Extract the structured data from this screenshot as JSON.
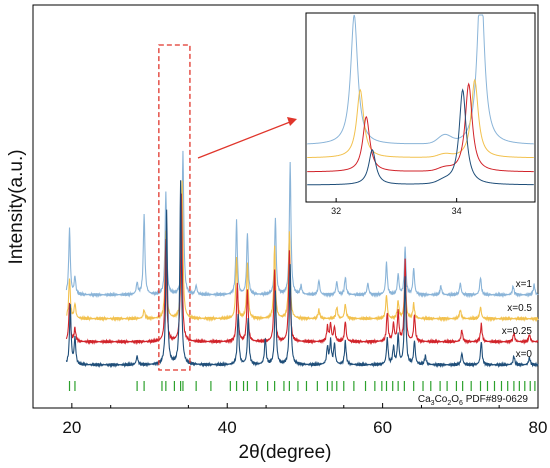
{
  "chart_data": {
    "type": "line",
    "xlabel": "2θ(degree)",
    "ylabel": "Intensity(a.u.)",
    "xlim": [
      15,
      80
    ],
    "xticks": [
      20,
      40,
      60,
      80
    ],
    "y_axis_ticks": "none",
    "grid": false,
    "legend": "inline labels at right end of each trace",
    "series": [
      {
        "name": "x=1",
        "color": "#8ab4d8",
        "baseline": 1.0,
        "peaks": [
          [
            19.7,
            0.45
          ],
          [
            20.4,
            0.12
          ],
          [
            28.4,
            0.08
          ],
          [
            29.3,
            0.55
          ],
          [
            32.1,
            0.7
          ],
          [
            34.3,
            0.98
          ],
          [
            36.0,
            0.06
          ],
          [
            41.2,
            0.5
          ],
          [
            42.6,
            0.42
          ],
          [
            46.2,
            0.52
          ],
          [
            48.1,
            0.9
          ],
          [
            49.5,
            0.06
          ],
          [
            51.8,
            0.1
          ],
          [
            54.1,
            0.09
          ],
          [
            55.2,
            0.12
          ],
          [
            58.1,
            0.08
          ],
          [
            60.5,
            0.22
          ],
          [
            62.0,
            0.14
          ],
          [
            62.9,
            0.32
          ],
          [
            64.0,
            0.18
          ],
          [
            67.5,
            0.06
          ],
          [
            70.0,
            0.08
          ],
          [
            72.6,
            0.12
          ],
          [
            76.8,
            0.06
          ],
          [
            79.5,
            0.07
          ]
        ]
      },
      {
        "name": "x=0.5",
        "color": "#f2c14e",
        "baseline": 0.66,
        "peaks": [
          [
            19.7,
            0.28
          ],
          [
            20.4,
            0.1
          ],
          [
            29.3,
            0.06
          ],
          [
            32.1,
            0.6
          ],
          [
            34.2,
            0.93
          ],
          [
            41.2,
            0.42
          ],
          [
            42.6,
            0.38
          ],
          [
            46.1,
            0.5
          ],
          [
            48.0,
            0.6
          ],
          [
            51.8,
            0.06
          ],
          [
            54.1,
            0.08
          ],
          [
            55.2,
            0.1
          ],
          [
            60.5,
            0.16
          ],
          [
            62.0,
            0.12
          ],
          [
            62.9,
            0.3
          ],
          [
            64.0,
            0.1
          ],
          [
            70.0,
            0.06
          ],
          [
            72.6,
            0.08
          ]
        ]
      },
      {
        "name": "x=0.25",
        "color": "#d1232a",
        "baseline": 0.33,
        "peaks": [
          [
            19.7,
            0.26
          ],
          [
            20.4,
            0.09
          ],
          [
            32.1,
            0.7
          ],
          [
            34.1,
            1.0
          ],
          [
            41.3,
            0.4
          ],
          [
            42.6,
            0.35
          ],
          [
            46.1,
            0.48
          ],
          [
            48.0,
            0.62
          ],
          [
            52.9,
            0.1
          ],
          [
            53.3,
            0.12
          ],
          [
            53.8,
            0.1
          ],
          [
            55.2,
            0.14
          ],
          [
            60.6,
            0.2
          ],
          [
            61.4,
            0.12
          ],
          [
            62.0,
            0.2
          ],
          [
            62.9,
            0.55
          ],
          [
            64.1,
            0.18
          ],
          [
            70.2,
            0.08
          ],
          [
            72.7,
            0.12
          ],
          [
            76.9,
            0.06
          ],
          [
            78.9,
            0.05
          ]
        ]
      },
      {
        "name": "x=0",
        "color": "#1f4e79",
        "baseline": 0.0,
        "peaks": [
          [
            19.8,
            0.4
          ],
          [
            20.4,
            0.18
          ],
          [
            28.4,
            0.06
          ],
          [
            32.2,
            1.05
          ],
          [
            34.0,
            1.25
          ],
          [
            41.4,
            0.35
          ],
          [
            42.7,
            0.32
          ],
          [
            44.9,
            0.18
          ],
          [
            46.2,
            0.5
          ],
          [
            48.1,
            0.68
          ],
          [
            52.9,
            0.12
          ],
          [
            53.3,
            0.16
          ],
          [
            53.8,
            0.14
          ],
          [
            55.2,
            0.16
          ],
          [
            60.6,
            0.18
          ],
          [
            61.4,
            0.12
          ],
          [
            62.0,
            0.2
          ],
          [
            62.9,
            0.6
          ],
          [
            64.1,
            0.16
          ],
          [
            65.5,
            0.06
          ],
          [
            70.2,
            0.08
          ],
          [
            72.7,
            0.16
          ],
          [
            76.9,
            0.06
          ],
          [
            78.9,
            0.05
          ]
        ]
      }
    ],
    "reference": {
      "label": "PDF#89-0629",
      "formula": {
        "ca": "Ca",
        "ca_n": "3",
        "co": "Co",
        "co_n": "2",
        "o": "O",
        "o_n": "6"
      },
      "color": "#2ca02c",
      "positions": [
        19.7,
        20.4,
        28.4,
        29.3,
        31.6,
        32.1,
        33.2,
        34.0,
        34.3,
        36.0,
        37.9,
        40.4,
        41.2,
        42.1,
        42.6,
        43.8,
        45.2,
        46.1,
        47.3,
        48.0,
        49.1,
        50.2,
        51.6,
        52.9,
        53.5,
        54.1,
        55.0,
        56.3,
        57.8,
        59.0,
        59.9,
        60.5,
        61.3,
        62.0,
        62.8,
        64.0,
        65.2,
        66.2,
        67.4,
        68.3,
        69.5,
        70.3,
        71.4,
        72.6,
        73.5,
        74.4,
        75.3,
        76.1,
        76.9,
        77.6,
        78.3,
        79.0,
        79.6
      ]
    },
    "highlight_box": {
      "xlim": [
        31.2,
        35.2
      ]
    },
    "inset": {
      "xlim": [
        31.5,
        35.3
      ],
      "xticks": [
        32,
        34
      ],
      "peaks_by_series": {
        "x=1": [
          32.3,
          34.4
        ],
        "x=0.5": [
          32.4,
          34.3
        ],
        "x=0.25": [
          32.5,
          34.2
        ],
        "x=0": [
          32.6,
          34.1
        ]
      }
    }
  }
}
